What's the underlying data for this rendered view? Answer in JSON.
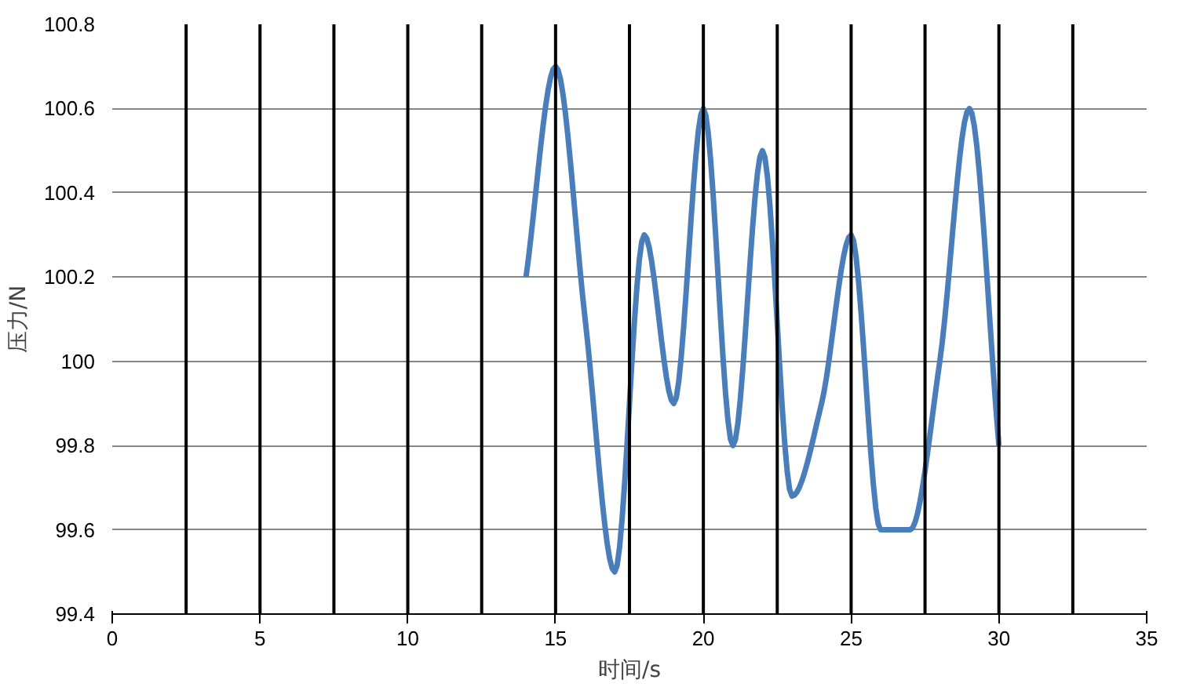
{
  "chart_data": {
    "type": "line",
    "xlabel": "时间/s",
    "ylabel": "压力/N",
    "x": [
      14,
      15,
      16,
      17,
      18,
      19,
      20,
      21,
      22,
      23,
      24,
      25,
      26,
      27,
      28,
      29,
      30
    ],
    "series": [
      {
        "color": "#4a7ebb",
        "values": [
          100.2,
          100.7,
          100.1,
          99.5,
          100.3,
          99.9,
          100.6,
          99.8,
          100.5,
          99.68,
          99.9,
          100.3,
          99.6,
          99.6,
          100.0,
          100.6,
          99.8
        ]
      }
    ],
    "xlim": [
      0,
      35
    ],
    "xticks": [
      0,
      5,
      10,
      15,
      20,
      25,
      30,
      35
    ],
    "ylim": [
      99.4,
      100.8
    ],
    "yticks": [
      99.4,
      99.6,
      99.8,
      100,
      100.2,
      100.4,
      100.6,
      100.8
    ],
    "grid": "y",
    "marker": "none",
    "line_style": "solid",
    "ref_lines": [
      {
        "axis": "x",
        "value": 2.5,
        "color": "#000000"
      },
      {
        "axis": "x",
        "value": 5,
        "color": "#000000"
      },
      {
        "axis": "x",
        "value": 7.5,
        "color": "#000000"
      },
      {
        "axis": "x",
        "value": 10,
        "color": "#000000"
      },
      {
        "axis": "x",
        "value": 12.5,
        "color": "#000000"
      },
      {
        "axis": "x",
        "value": 15,
        "color": "#000000"
      },
      {
        "axis": "x",
        "value": 17.5,
        "color": "#000000"
      },
      {
        "axis": "x",
        "value": 20,
        "color": "#000000"
      },
      {
        "axis": "x",
        "value": 22.5,
        "color": "#000000"
      },
      {
        "axis": "x",
        "value": 25,
        "color": "#000000"
      },
      {
        "axis": "x",
        "value": 27.5,
        "color": "#000000"
      },
      {
        "axis": "x",
        "value": 30,
        "color": "#000000"
      },
      {
        "axis": "x",
        "value": 32.5,
        "color": "#000000"
      }
    ]
  }
}
